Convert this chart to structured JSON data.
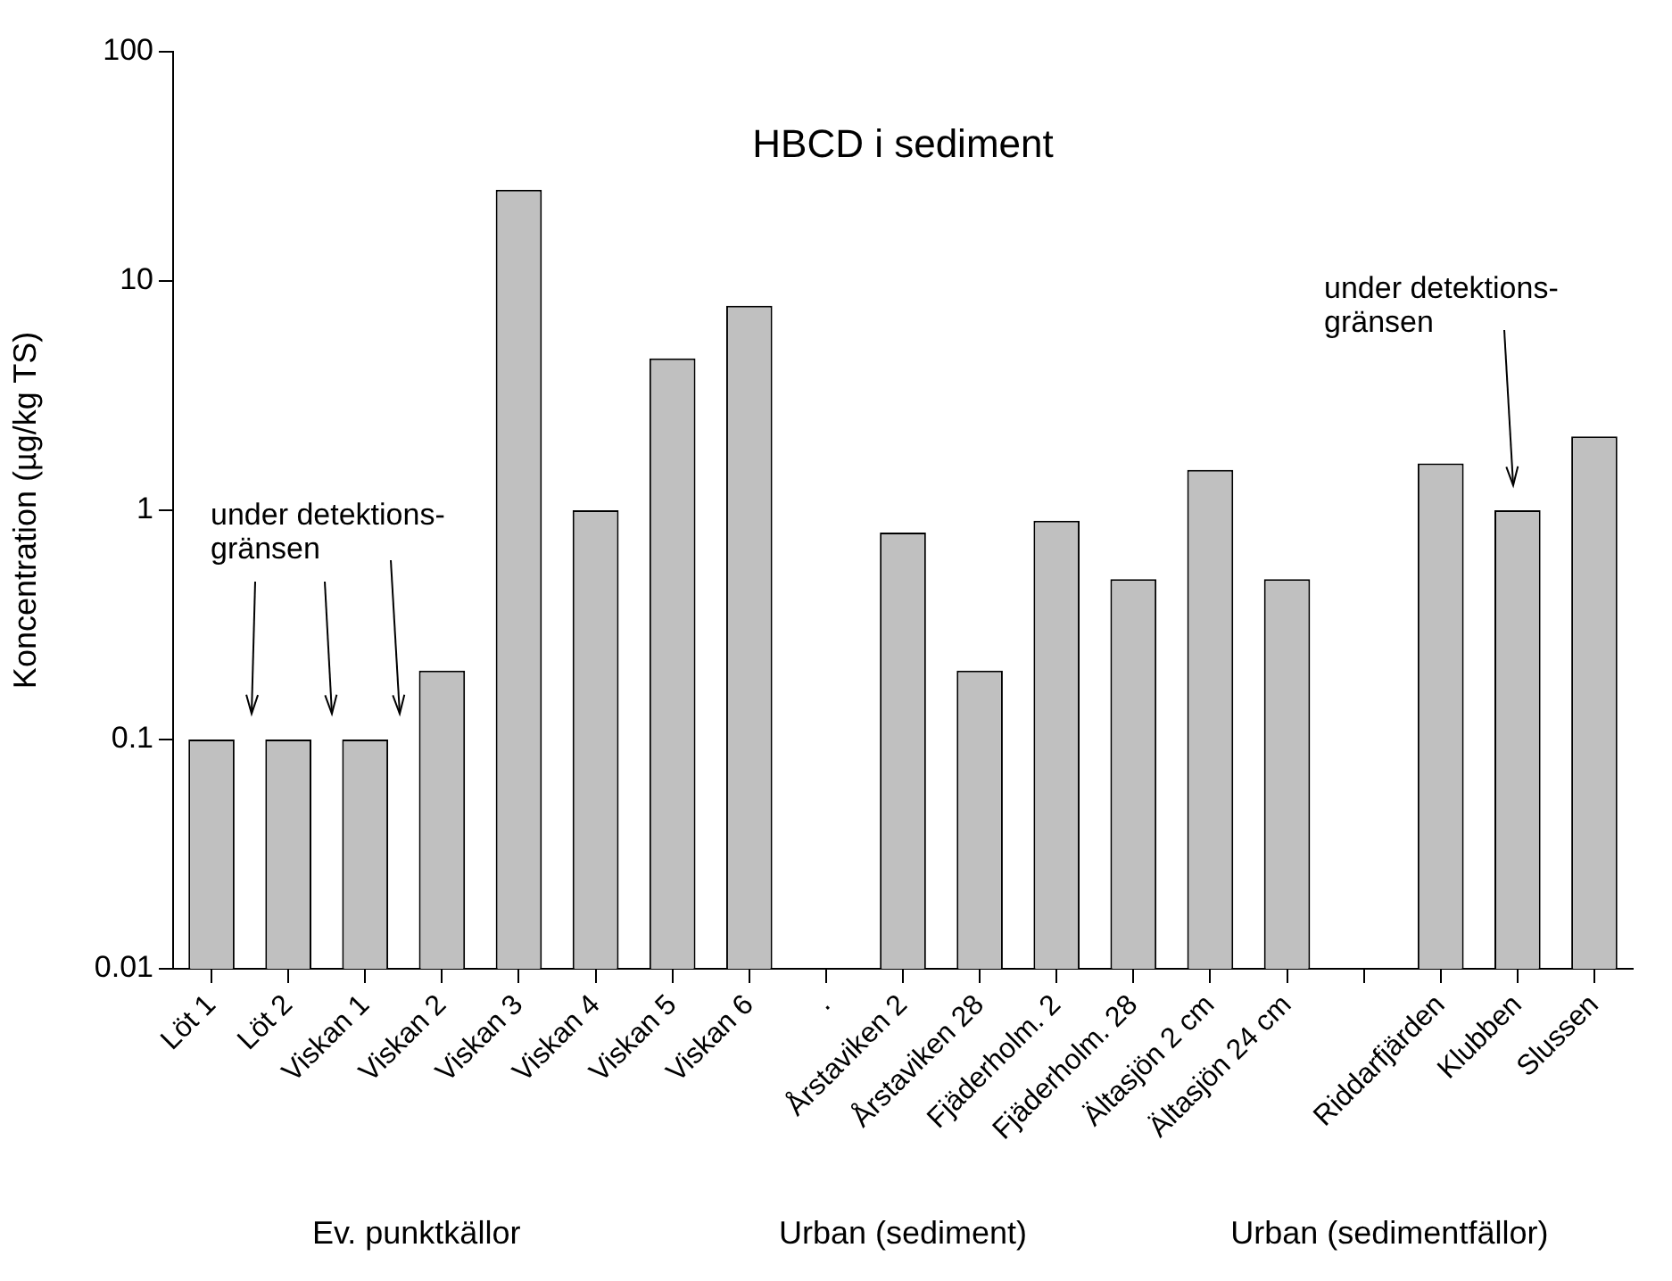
{
  "chart_data": {
    "type": "bar",
    "title": "HBCD i sediment",
    "ylabel": "Koncentration (µg/kg TS)",
    "categories": [
      "Löt 1",
      "Löt 2",
      "Viskan 1",
      "Viskan 2",
      "Viskan 3",
      "Viskan 4",
      "Viskan 5",
      "Viskan 6",
      ".",
      "Årstaviken 2",
      "Årstaviken 28",
      "Fjäderholm. 2",
      "Fjäderholm. 28",
      "Ältasjön 2 cm",
      "Ältasjön 24 cm",
      null,
      "Riddarfjärden",
      "Klubben",
      "Slussen"
    ],
    "values": [
      0.1,
      0.1,
      0.1,
      0.2,
      25,
      1,
      4.6,
      7.8,
      null,
      0.8,
      0.2,
      0.9,
      0.5,
      1.5,
      0.5,
      null,
      1.6,
      1,
      2.1
    ],
    "color": "#c0c0c0",
    "log": true,
    "ylim": [
      0.01,
      100
    ],
    "yticks": [
      0.01,
      0.1,
      1,
      10,
      100
    ],
    "grid": false,
    "legend": false,
    "annotations": [
      "under detektions-\ngränsen",
      "under detektions-\ngränsen",
      "Ev. punktkällor",
      "Urban (sediment)",
      "Urban (sedimentfällor)"
    ]
  }
}
